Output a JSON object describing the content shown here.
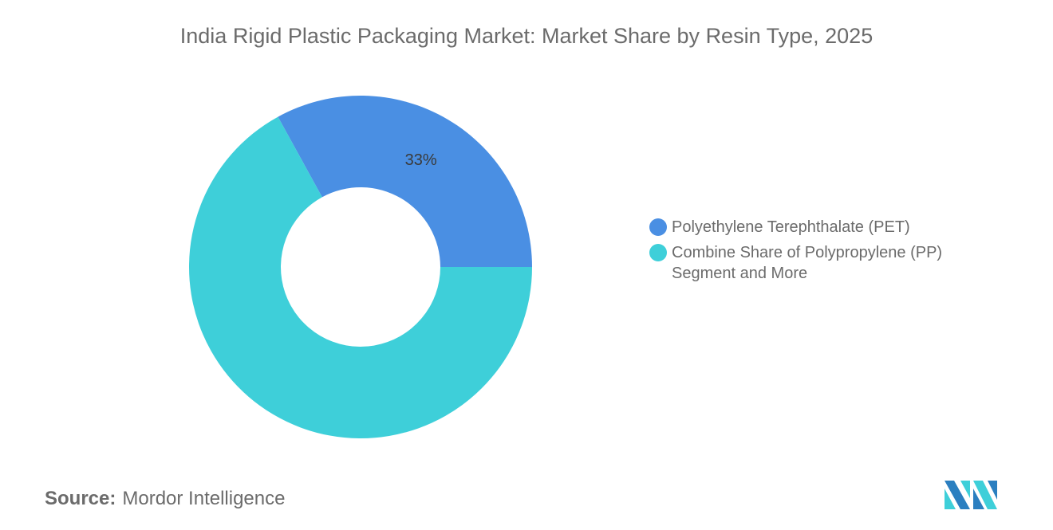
{
  "chart_data": {
    "type": "pie",
    "donut": true,
    "title": "India Rigid Plastic Packaging Market: Market Share by Resin Type, 2025",
    "categories": [
      "Polyethylene Terephthalate (PET)",
      "Combine Share of Polypropylene (PP) Segment and More"
    ],
    "values": [
      33,
      67
    ],
    "data_labels": [
      "33%",
      ""
    ],
    "colors": [
      "#4a8fe3",
      "#3ecfd9"
    ],
    "legend_placement": "right"
  },
  "source": {
    "label": "Source:",
    "value": "Mordor Intelligence"
  },
  "logo": {
    "name": "mordor-intelligence-logo",
    "colors": [
      "#2b7fc0",
      "#3ecfd9"
    ]
  }
}
